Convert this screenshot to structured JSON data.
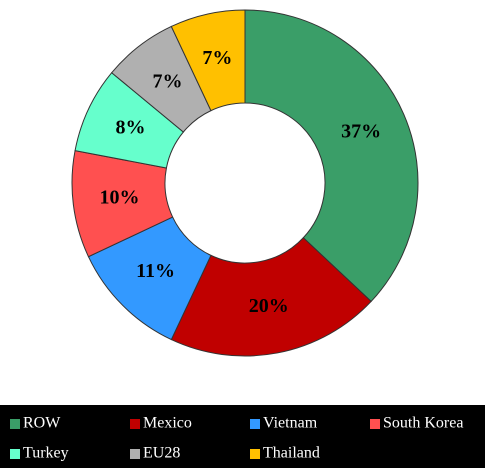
{
  "chart_data": {
    "type": "donut",
    "categories": [
      "ROW",
      "Mexico",
      "Vietnam",
      "South Korea",
      "Turkey",
      "EU28",
      "Thailand"
    ],
    "values": [
      37,
      20,
      11,
      10,
      8,
      7,
      7
    ],
    "value_labels": [
      "37%",
      "20%",
      "11%",
      "10%",
      "8%",
      "7%",
      "7%"
    ],
    "colors": [
      "#3a9e68",
      "#c00000",
      "#3399ff",
      "#ff5050",
      "#66ffcc",
      "#b0b0b0",
      "#ffc000"
    ],
    "legend": "bottom"
  }
}
